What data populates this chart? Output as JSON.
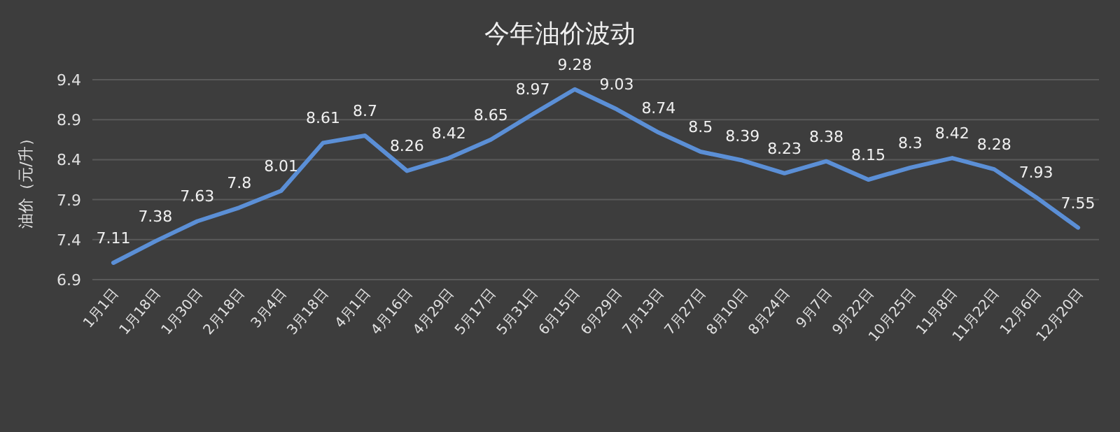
{
  "chart_data": {
    "type": "line",
    "title": "今年油价波动",
    "ylabel": "油价（元/升）",
    "categories": [
      "1月1日",
      "1月18日",
      "1月30日",
      "2月18日",
      "3月4日",
      "3月18日",
      "4月1日",
      "4月16日",
      "4月29日",
      "5月17日",
      "5月31日",
      "6月15日",
      "6月29日",
      "7月13日",
      "7月27日",
      "8月10日",
      "8月24日",
      "9月7日",
      "9月22日",
      "10月25日",
      "11月8日",
      "11月22日",
      "12月6日",
      "12月20日"
    ],
    "values": [
      7.11,
      7.38,
      7.63,
      7.8,
      8.01,
      8.61,
      8.7,
      8.26,
      8.42,
      8.65,
      8.97,
      9.28,
      9.03,
      8.74,
      8.5,
      8.39,
      8.23,
      8.38,
      8.15,
      8.3,
      8.42,
      8.28,
      7.93,
      7.55
    ],
    "color": "#5b8fd6",
    "ylim": [
      6.9,
      9.4
    ],
    "yticks": [
      6.9,
      7.4,
      7.9,
      8.4,
      8.9,
      9.4
    ],
    "grid": "y",
    "data_labels": true
  }
}
